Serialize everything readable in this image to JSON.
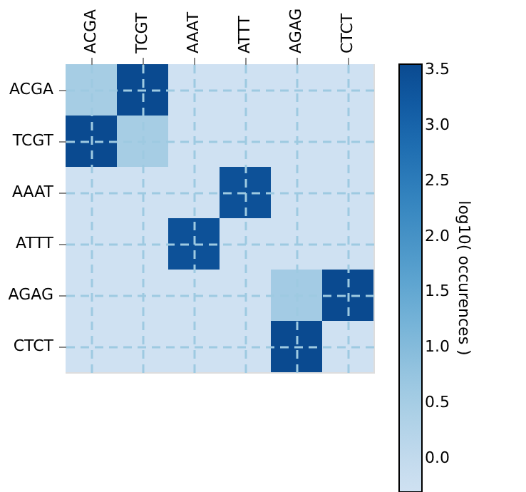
{
  "chart_data": {
    "type": "heatmap",
    "categories": [
      "ACGA",
      "TCGT",
      "AAAT",
      "ATTT",
      "AGAG",
      "CTCT"
    ],
    "y_categories": [
      "ACGA",
      "TCGT",
      "AAAT",
      "ATTT",
      "AGAG",
      "CTCT"
    ],
    "cells": [
      [
        0.5,
        3.55,
        -0.3,
        -0.3,
        -0.3,
        -0.3
      ],
      [
        3.55,
        0.5,
        -0.3,
        -0.3,
        -0.3,
        -0.3
      ],
      [
        -0.3,
        -0.3,
        -0.3,
        3.4,
        -0.3,
        -0.3
      ],
      [
        -0.3,
        -0.3,
        3.4,
        -0.3,
        -0.3,
        -0.3
      ],
      [
        -0.3,
        -0.3,
        -0.3,
        -0.3,
        0.55,
        3.55
      ],
      [
        -0.3,
        -0.3,
        -0.3,
        -0.3,
        3.55,
        -0.3
      ]
    ],
    "clabel": "log10( occurences )",
    "clim": [
      -0.3,
      3.55
    ],
    "cticks": [
      {
        "value": 0,
        "label": "0.0"
      },
      {
        "value": 0.5,
        "label": "0.5"
      },
      {
        "value": 1,
        "label": "1.0"
      },
      {
        "value": 1.5,
        "label": "1.5"
      },
      {
        "value": 2,
        "label": "2.0"
      },
      {
        "value": 2.5,
        "label": "2.5"
      },
      {
        "value": 3,
        "label": "3.0"
      },
      {
        "value": 3.5,
        "label": "3.5"
      }
    ],
    "grid": true
  }
}
